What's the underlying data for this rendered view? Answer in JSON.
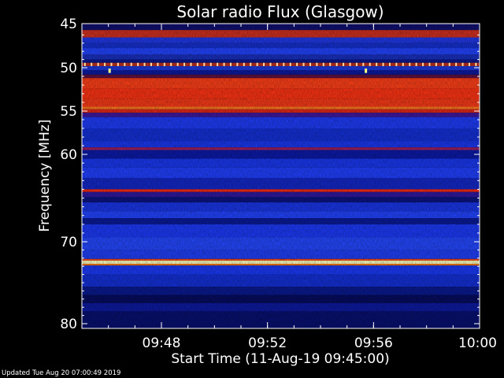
{
  "chart_data": {
    "type": "heatmap",
    "title": "Solar radio Flux (Glasgow)",
    "ylabel": "Frequency [MHz]",
    "xlabel": "Start Time (11-Aug-19 09:45:00)",
    "y_axis": {
      "reversed": true,
      "range": [
        45,
        80
      ],
      "ticks": [
        "45",
        "50",
        "55",
        "60",
        "70",
        "80"
      ]
    },
    "x_axis": {
      "range": [
        "09:45",
        "10:00"
      ],
      "ticks": [
        "09:48",
        "09:52",
        "09:56",
        "10:00"
      ]
    },
    "colormap": [
      "#000030",
      "#0010a0",
      "#1030ff",
      "#3a5cff",
      "#e02020",
      "#ff5020",
      "#ffff60",
      "#ffffff"
    ],
    "bands": [
      {
        "f_start": 45.0,
        "f_end": 45.4,
        "color": "#101070"
      },
      {
        "f_start": 45.4,
        "f_end": 46.3,
        "color": "#d03020"
      },
      {
        "f_start": 46.3,
        "f_end": 47.0,
        "color": "#2038e8"
      },
      {
        "f_start": 47.0,
        "f_end": 47.6,
        "color": "#1530d0"
      },
      {
        "f_start": 47.6,
        "f_end": 48.4,
        "color": "#2244ff"
      },
      {
        "f_start": 48.4,
        "f_end": 49.0,
        "color": "#1a30c0"
      },
      {
        "f_start": 49.0,
        "f_end": 49.4,
        "color": "#0a1890"
      },
      {
        "f_start": 49.4,
        "f_end": 49.8,
        "color": "#c03020"
      },
      {
        "f_start": 49.8,
        "f_end": 50.3,
        "color": "#1b38e0"
      },
      {
        "f_start": 50.3,
        "f_end": 50.8,
        "color": "#0c1aa0"
      },
      {
        "f_start": 50.8,
        "f_end": 51.2,
        "color": "#601040"
      },
      {
        "f_start": 51.2,
        "f_end": 52.4,
        "color": "#ff4018"
      },
      {
        "f_start": 52.4,
        "f_end": 53.6,
        "color": "#ff3414"
      },
      {
        "f_start": 53.6,
        "f_end": 54.5,
        "color": "#f83a18"
      },
      {
        "f_start": 54.5,
        "f_end": 54.8,
        "color": "#ff7a20"
      },
      {
        "f_start": 54.8,
        "f_end": 55.2,
        "color": "#e02818"
      },
      {
        "f_start": 55.2,
        "f_end": 55.7,
        "color": "#4018a0"
      },
      {
        "f_start": 55.7,
        "f_end": 57.0,
        "color": "#1f3cf8"
      },
      {
        "f_start": 57.0,
        "f_end": 58.5,
        "color": "#1430d8"
      },
      {
        "f_start": 58.5,
        "f_end": 59.2,
        "color": "#1a38f0"
      },
      {
        "f_start": 59.2,
        "f_end": 59.5,
        "color": "#a02060"
      },
      {
        "f_start": 59.5,
        "f_end": 60.5,
        "color": "#0c1aa8"
      },
      {
        "f_start": 60.5,
        "f_end": 61.5,
        "color": "#1a38f0"
      },
      {
        "f_start": 61.5,
        "f_end": 62.7,
        "color": "#2040ff"
      },
      {
        "f_start": 62.7,
        "f_end": 64.0,
        "color": "#1428c8"
      },
      {
        "f_start": 64.0,
        "f_end": 64.3,
        "color": "#ff2a10"
      },
      {
        "f_start": 64.3,
        "f_end": 64.9,
        "color": "#3018a0"
      },
      {
        "f_start": 64.9,
        "f_end": 65.5,
        "color": "#0a1480"
      },
      {
        "f_start": 65.5,
        "f_end": 66.5,
        "color": "#1a36e8"
      },
      {
        "f_start": 66.5,
        "f_end": 67.3,
        "color": "#2244ff"
      },
      {
        "f_start": 67.3,
        "f_end": 68.0,
        "color": "#0a1a98"
      },
      {
        "f_start": 68.0,
        "f_end": 69.5,
        "color": "#1c3af8"
      },
      {
        "f_start": 69.5,
        "f_end": 71.0,
        "color": "#2448ff"
      },
      {
        "f_start": 71.0,
        "f_end": 72.1,
        "color": "#2040f8"
      },
      {
        "f_start": 72.1,
        "f_end": 72.3,
        "color": "#ff4a10"
      },
      {
        "f_start": 72.3,
        "f_end": 72.7,
        "color": "#ffffc0"
      },
      {
        "f_start": 72.7,
        "f_end": 72.9,
        "color": "#ff7a10"
      },
      {
        "f_start": 72.9,
        "f_end": 74.0,
        "color": "#1a3af8"
      },
      {
        "f_start": 74.0,
        "f_end": 75.5,
        "color": "#1430d8"
      },
      {
        "f_start": 75.5,
        "f_end": 76.5,
        "color": "#0a1a90"
      },
      {
        "f_start": 76.5,
        "f_end": 77.5,
        "color": "#060c60"
      },
      {
        "f_start": 77.5,
        "f_end": 78.5,
        "color": "#0d1aa0"
      },
      {
        "f_start": 78.5,
        "f_end": 80.0,
        "color": "#081070"
      }
    ],
    "bursts": [
      {
        "time": "09:46:00",
        "f_start": 50.1,
        "f_end": 50.6,
        "color": "#ffff80"
      },
      {
        "time": "09:55:40",
        "f_start": 50.1,
        "f_end": 50.6,
        "color": "#ffff80"
      }
    ],
    "periodic_interference": {
      "f_start": 49.4,
      "f_end": 49.8,
      "color": "#ffe0a0",
      "interval_seconds": 15
    }
  },
  "footer": {
    "updated": "Updated Tue Aug 20 07:00:49 2019"
  }
}
